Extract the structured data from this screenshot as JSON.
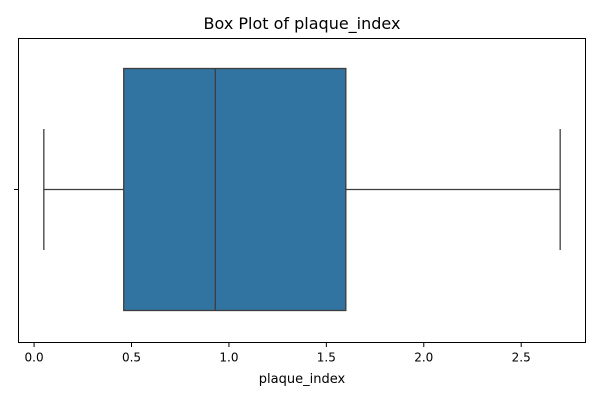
{
  "chart_data": {
    "type": "box",
    "title": "Box Plot of plaque_index",
    "xlabel": "plaque_index",
    "ylabel": "",
    "orientation": "horizontal",
    "xlim": [
      -0.08,
      2.83
    ],
    "x_ticks": [
      0.0,
      0.5,
      1.0,
      1.5,
      2.0,
      2.5
    ],
    "x_tick_labels": [
      "0.0",
      "0.5",
      "1.0",
      "1.5",
      "2.0",
      "2.5"
    ],
    "box": {
      "min": 0.05,
      "q1": 0.46,
      "median": 0.93,
      "q3": 1.6,
      "max": 2.7
    },
    "grid": false,
    "colors": {
      "box_fill": "#3274a1",
      "line": "#3d3d3d"
    }
  }
}
